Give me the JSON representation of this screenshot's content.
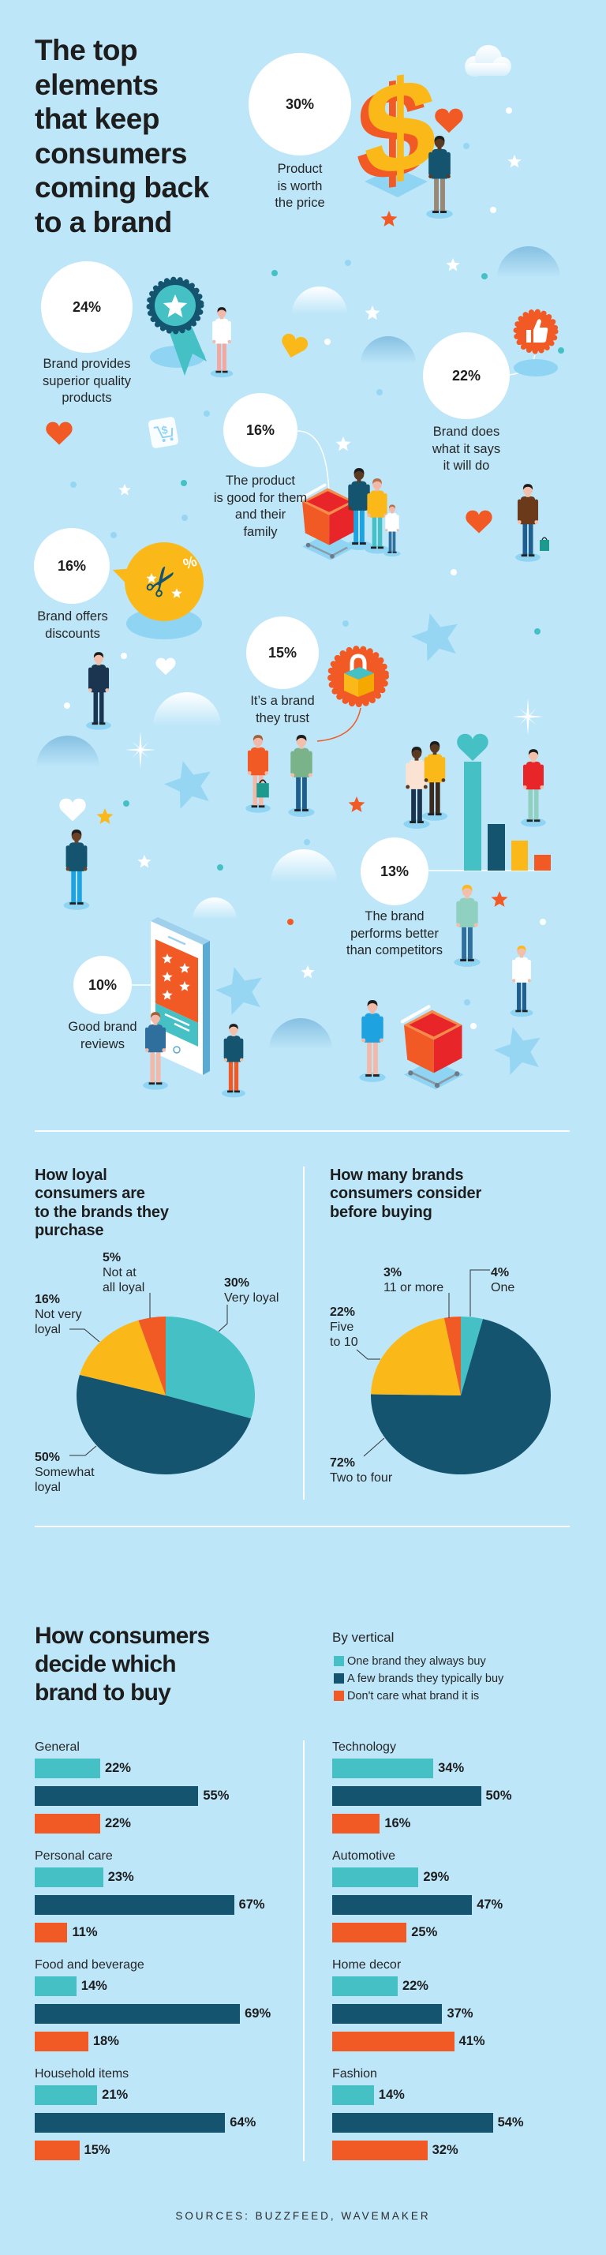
{
  "colors": {
    "background": "#bde6f9",
    "teal": "#45c1c5",
    "navy": "#14546f",
    "yellow": "#fbb919",
    "orange": "#f15a24",
    "text": "#1d1d1d"
  },
  "header": {
    "title_lines": [
      "The top",
      "elements",
      "that keep",
      "consumers",
      "coming back",
      "to a brand"
    ]
  },
  "factors": [
    {
      "value": "30%",
      "lines": [
        "Product",
        "is worth",
        "the price"
      ]
    },
    {
      "value": "24%",
      "lines": [
        "Brand provides",
        "superior quality",
        "products"
      ]
    },
    {
      "value": "22%",
      "lines": [
        "Brand does",
        "what it says",
        "it will do"
      ]
    },
    {
      "value": "16%",
      "lines": [
        "The product",
        "is good for them",
        "and their",
        "family"
      ]
    },
    {
      "value": "16%",
      "lines": [
        "Brand offers",
        "discounts"
      ]
    },
    {
      "value": "15%",
      "lines": [
        "It’s a brand",
        "they trust"
      ]
    },
    {
      "value": "13%",
      "lines": [
        "The brand",
        "performs better",
        "than competitors"
      ]
    },
    {
      "value": "10%",
      "lines": [
        "Good brand",
        "reviews"
      ]
    }
  ],
  "illustrations": [
    "dollar-sign-icon",
    "heart-icon",
    "ribbon-badge-icon",
    "shopping-cart-tile-icon",
    "thumbs-up-badge-icon",
    "shopping-cart-icon",
    "scissors-discount-icon",
    "padlock-badge-icon",
    "bar-chart-heart-icon",
    "smartphone-reviews-icon",
    "cloud-icon",
    "star-icon",
    "sparkle-icon",
    "person-icon"
  ],
  "loyalty": {
    "title_lines": [
      "How loyal",
      "consumers are",
      "to the brands they",
      "purchase"
    ],
    "slices": [
      {
        "key": "very-loyal",
        "value": 30,
        "pct": "30%",
        "lines": [
          "Very loyal"
        ],
        "color": "#45c1c5"
      },
      {
        "key": "somewhat-loyal",
        "value": 50,
        "pct": "50%",
        "lines": [
          "Somewhat",
          "loyal"
        ],
        "color": "#14546f"
      },
      {
        "key": "not-very-loyal",
        "value": 16,
        "pct": "16%",
        "lines": [
          "Not very",
          "loyal"
        ],
        "color": "#fbb919"
      },
      {
        "key": "not-at-all-loyal",
        "value": 5,
        "pct": "5%",
        "lines": [
          "Not at",
          "all loyal"
        ],
        "color": "#f15a24"
      }
    ]
  },
  "consideration": {
    "title_lines": [
      "How many brands",
      "consumers consider",
      "before buying"
    ],
    "slices": [
      {
        "key": "one",
        "value": 4,
        "pct": "4%",
        "lines": [
          "One"
        ],
        "color": "#45c1c5"
      },
      {
        "key": "two-to-four",
        "value": 72,
        "pct": "72%",
        "lines": [
          "Two to four"
        ],
        "color": "#14546f"
      },
      {
        "key": "five-to-10",
        "value": 22,
        "pct": "22%",
        "lines": [
          "Five",
          "to 10"
        ],
        "color": "#fbb919"
      },
      {
        "key": "eleven-or-more",
        "value": 3,
        "pct": "3%",
        "lines": [
          "11 or more"
        ],
        "color": "#f15a24"
      }
    ]
  },
  "decide": {
    "title_lines": [
      "How consumers",
      "decide which",
      "brand to buy"
    ],
    "legend": {
      "title": "By vertical",
      "items": [
        "One brand they always buy",
        "A few brands they typically buy",
        "Don't care what brand it is"
      ]
    },
    "groups": [
      {
        "name": "General",
        "values": [
          22,
          55,
          22
        ],
        "labels": [
          "22%",
          "55%",
          "22%"
        ]
      },
      {
        "name": "Personal care",
        "values": [
          23,
          67,
          11
        ],
        "labels": [
          "23%",
          "67%",
          "11%"
        ]
      },
      {
        "name": "Food and beverage",
        "values": [
          14,
          69,
          18
        ],
        "labels": [
          "14%",
          "69%",
          "18%"
        ]
      },
      {
        "name": "Household items",
        "values": [
          21,
          64,
          15
        ],
        "labels": [
          "21%",
          "64%",
          "15%"
        ]
      },
      {
        "name": "Technology",
        "values": [
          34,
          50,
          16
        ],
        "labels": [
          "34%",
          "50%",
          "16%"
        ]
      },
      {
        "name": "Automotive",
        "values": [
          29,
          47,
          25
        ],
        "labels": [
          "29%",
          "47%",
          "25%"
        ]
      },
      {
        "name": "Home decor",
        "values": [
          22,
          37,
          41
        ],
        "labels": [
          "22%",
          "37%",
          "41%"
        ]
      },
      {
        "name": "Fashion",
        "values": [
          14,
          54,
          32
        ],
        "labels": [
          "14%",
          "54%",
          "32%"
        ]
      }
    ]
  },
  "footer": {
    "sources": "SOURCES: BUZZFEED, WAVEMAKER"
  },
  "chart_data": [
    {
      "type": "bar",
      "title": "The top elements that keep consumers coming back to a brand",
      "categories": [
        "Product is worth the price",
        "Brand provides superior quality products",
        "Brand does what it says it will do",
        "The product is good for them and their family",
        "Brand offers discounts",
        "It’s a brand they trust",
        "The brand performs better than competitors",
        "Good brand reviews"
      ],
      "values": [
        30,
        24,
        22,
        16,
        16,
        15,
        13,
        10
      ],
      "unit": "%",
      "xlabel": "",
      "ylabel": ""
    },
    {
      "type": "pie",
      "title": "How loyal consumers are to the brands they purchase",
      "categories": [
        "Very loyal",
        "Somewhat loyal",
        "Not very loyal",
        "Not at all loyal"
      ],
      "values": [
        30,
        50,
        16,
        5
      ],
      "colors": [
        "#45c1c5",
        "#14546f",
        "#fbb919",
        "#f15a24"
      ],
      "unit": "%"
    },
    {
      "type": "pie",
      "title": "How many brands consumers consider before buying",
      "categories": [
        "One",
        "Two to four",
        "Five to 10",
        "11 or more"
      ],
      "values": [
        4,
        72,
        22,
        3
      ],
      "colors": [
        "#45c1c5",
        "#14546f",
        "#fbb919",
        "#f15a24"
      ],
      "unit": "%"
    },
    {
      "type": "bar",
      "orientation": "horizontal",
      "title": "How consumers decide which brand to buy",
      "subtitle": "By vertical",
      "categories": [
        "General",
        "Personal care",
        "Food and beverage",
        "Household items",
        "Technology",
        "Automotive",
        "Home decor",
        "Fashion"
      ],
      "series": [
        {
          "name": "One brand they always buy",
          "color": "#45c1c5",
          "values": [
            22,
            23,
            14,
            21,
            34,
            29,
            22,
            14
          ]
        },
        {
          "name": "A few brands they typically buy",
          "color": "#14546f",
          "values": [
            55,
            67,
            69,
            64,
            50,
            47,
            37,
            54
          ]
        },
        {
          "name": "Don't care what brand it is",
          "color": "#f15a24",
          "values": [
            22,
            11,
            18,
            15,
            16,
            25,
            41,
            32
          ]
        }
      ],
      "unit": "%",
      "legend_position": "top-right",
      "grid": false
    }
  ]
}
